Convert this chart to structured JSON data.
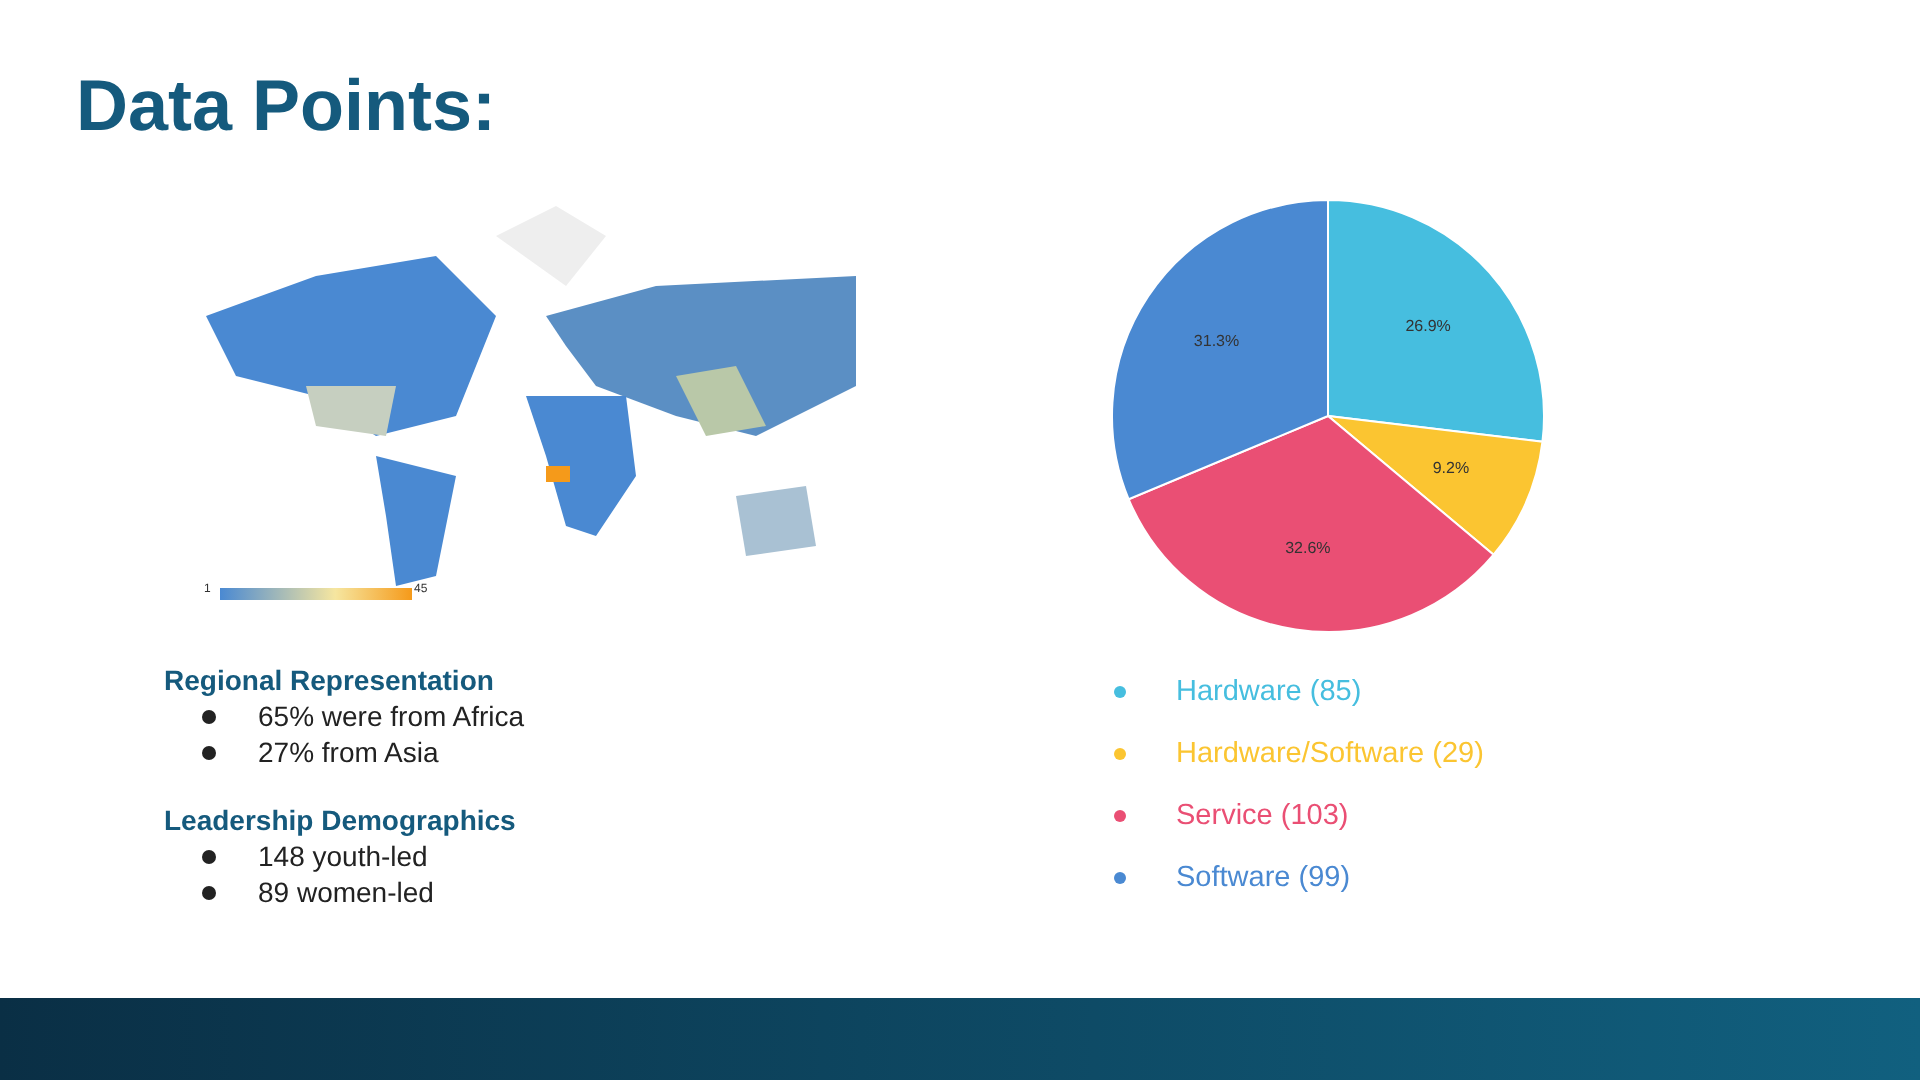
{
  "chart_data": {
    "type": "pie",
    "title": "Data Points:",
    "categories": [
      "Hardware (85)",
      "Hardware/Software (29)",
      "Service (103)",
      "Software (99)"
    ],
    "values": [
      26.9,
      9.2,
      32.6,
      31.3
    ],
    "colors": [
      "#46bedf",
      "#fbc531",
      "#ea4f74",
      "#4a89d2"
    ],
    "value_labels": [
      "26.9%",
      "9.2%",
      "32.6%",
      "31.3%"
    ],
    "legend": "bottom",
    "annotations": [
      "Regional Representation",
      "65% were from Africa",
      "27% from Asia",
      "Leadership Demographics",
      "148 youth-led",
      "89 women-led",
      "1",
      "45"
    ]
  }
}
